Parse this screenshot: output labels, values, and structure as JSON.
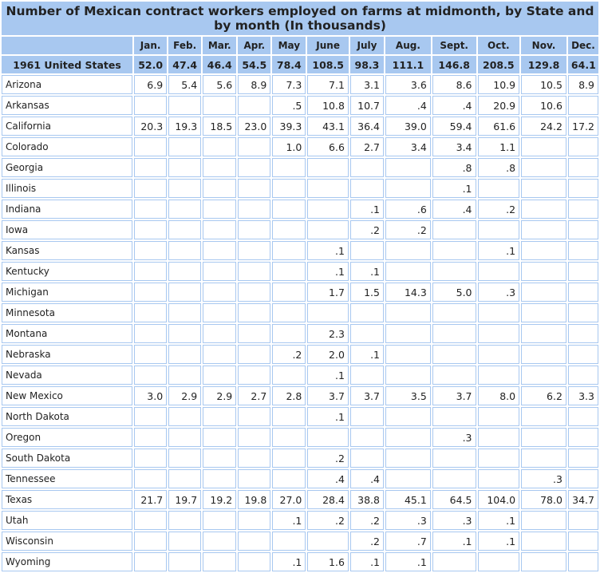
{
  "title": "Number of Mexican contract workers employed on farms at midmonth, by State and by month (In thousands)",
  "months": [
    "Jan.",
    "Feb.",
    "Mar.",
    "Apr.",
    "May",
    "June",
    "July",
    "Aug.",
    "Sept.",
    "Oct.",
    "Nov.",
    "Dec."
  ],
  "total": {
    "label": "1961 United States",
    "values": [
      "52.0",
      "47.4",
      "46.4",
      "54.5",
      "78.4",
      "108.5",
      "98.3",
      "111.1",
      "146.8",
      "208.5",
      "129.8",
      "64.1"
    ]
  },
  "rows": [
    {
      "state": "Arizona",
      "values": [
        "6.9",
        "5.4",
        "5.6",
        "8.9",
        "7.3",
        "7.1",
        "3.1",
        "3.6",
        "8.6",
        "10.9",
        "10.5",
        "8.9"
      ]
    },
    {
      "state": "Arkansas",
      "values": [
        "",
        "",
        "",
        "",
        ".5",
        "10.8",
        "10.7",
        ".4",
        ".4",
        "20.9",
        "10.6",
        ""
      ]
    },
    {
      "state": "California",
      "values": [
        "20.3",
        "19.3",
        "18.5",
        "23.0",
        "39.3",
        "43.1",
        "36.4",
        "39.0",
        "59.4",
        "61.6",
        "24.2",
        "17.2"
      ]
    },
    {
      "state": "Colorado",
      "values": [
        "",
        "",
        "",
        "",
        "1.0",
        "6.6",
        "2.7",
        "3.4",
        "3.4",
        "1.1",
        "",
        ""
      ]
    },
    {
      "state": "Georgia",
      "values": [
        "",
        "",
        "",
        "",
        "",
        "",
        "",
        "",
        ".8",
        ".8",
        "",
        ""
      ]
    },
    {
      "state": "Illinois",
      "values": [
        "",
        "",
        "",
        "",
        "",
        "",
        "",
        "",
        ".1",
        "",
        "",
        ""
      ]
    },
    {
      "state": "Indiana",
      "values": [
        "",
        "",
        "",
        "",
        "",
        "",
        ".1",
        ".6",
        ".4",
        ".2",
        "",
        ""
      ]
    },
    {
      "state": "Iowa",
      "values": [
        "",
        "",
        "",
        "",
        "",
        "",
        ".2",
        ".2",
        "",
        "",
        "",
        ""
      ]
    },
    {
      "state": "Kansas",
      "values": [
        "",
        "",
        "",
        "",
        "",
        ".1",
        "",
        "",
        "",
        ".1",
        "",
        ""
      ]
    },
    {
      "state": "Kentucky",
      "values": [
        "",
        "",
        "",
        "",
        "",
        ".1",
        ".1",
        "",
        "",
        "",
        "",
        ""
      ]
    },
    {
      "state": "Michigan",
      "values": [
        "",
        "",
        "",
        "",
        "",
        "1.7",
        "1.5",
        "14.3",
        "5.0",
        ".3",
        "",
        ""
      ]
    },
    {
      "state": "Minnesota",
      "values": [
        "",
        "",
        "",
        "",
        "",
        "",
        "",
        "",
        "",
        "",
        "",
        ""
      ]
    },
    {
      "state": "Montana",
      "values": [
        "",
        "",
        "",
        "",
        "",
        "2.3",
        "",
        "",
        "",
        "",
        "",
        ""
      ]
    },
    {
      "state": "Nebraska",
      "values": [
        "",
        "",
        "",
        "",
        ".2",
        "2.0",
        ".1",
        "",
        "",
        "",
        "",
        ""
      ]
    },
    {
      "state": "Nevada",
      "values": [
        "",
        "",
        "",
        "",
        "",
        ".1",
        "",
        "",
        "",
        "",
        "",
        ""
      ]
    },
    {
      "state": "New Mexico",
      "values": [
        "3.0",
        "2.9",
        "2.9",
        "2.7",
        "2.8",
        "3.7",
        "3.7",
        "3.5",
        "3.7",
        "8.0",
        "6.2",
        "3.3"
      ]
    },
    {
      "state": "North Dakota",
      "values": [
        "",
        "",
        "",
        "",
        "",
        ".1",
        "",
        "",
        "",
        "",
        "",
        ""
      ]
    },
    {
      "state": "Oregon",
      "values": [
        "",
        "",
        "",
        "",
        "",
        "",
        "",
        "",
        ".3",
        "",
        "",
        ""
      ]
    },
    {
      "state": "South Dakota",
      "values": [
        "",
        "",
        "",
        "",
        "",
        ".2",
        "",
        "",
        "",
        "",
        "",
        ""
      ]
    },
    {
      "state": "Tennessee",
      "values": [
        "",
        "",
        "",
        "",
        "",
        ".4",
        ".4",
        "",
        "",
        "",
        ".3",
        ""
      ]
    },
    {
      "state": "Texas",
      "values": [
        "21.7",
        "19.7",
        "19.2",
        "19.8",
        "27.0",
        "28.4",
        "38.8",
        "45.1",
        "64.5",
        "104.0",
        "78.0",
        "34.7"
      ]
    },
    {
      "state": "Utah",
      "values": [
        "",
        "",
        "",
        "",
        ".1",
        ".2",
        ".2",
        ".3",
        ".3",
        ".1",
        "",
        ""
      ]
    },
    {
      "state": "Wisconsin",
      "values": [
        "",
        "",
        "",
        "",
        "",
        "",
        ".2",
        ".7",
        ".1",
        ".1",
        "",
        ""
      ]
    },
    {
      "state": "Wyoming",
      "values": [
        "",
        "",
        "",
        "",
        ".1",
        "1.6",
        ".1",
        ".1",
        "",
        "",
        "",
        ""
      ]
    }
  ]
}
